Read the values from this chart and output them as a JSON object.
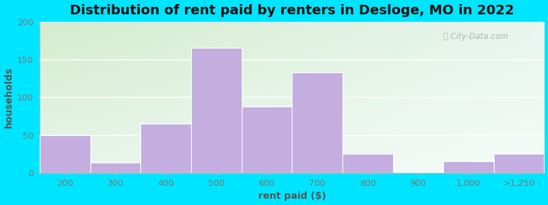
{
  "title": "Distribution of rent paid by renters in Desloge, MO in 2022",
  "xlabel": "rent paid ($)",
  "ylabel": "households",
  "categories": [
    "200",
    "300",
    "400",
    "500",
    "600",
    "700",
    "800",
    "900",
    "1,000",
    ">1,250"
  ],
  "values": [
    50,
    13,
    65,
    165,
    88,
    133,
    25,
    0,
    15,
    25
  ],
  "bar_color": "#c4aee0",
  "bar_edgecolor": "#ffffff",
  "ylim": [
    0,
    200
  ],
  "yticks": [
    0,
    50,
    100,
    150,
    200
  ],
  "bg_top_left": "#d4edcc",
  "bg_bottom_right": "#eef8f0",
  "bg_right": "#f0faf8",
  "outer_bg": "#00e5ff",
  "title_fontsize": 14,
  "axis_label_fontsize": 10,
  "tick_fontsize": 9,
  "watermark": "City-Data.com",
  "tick_color": "#777777",
  "label_color": "#555555"
}
